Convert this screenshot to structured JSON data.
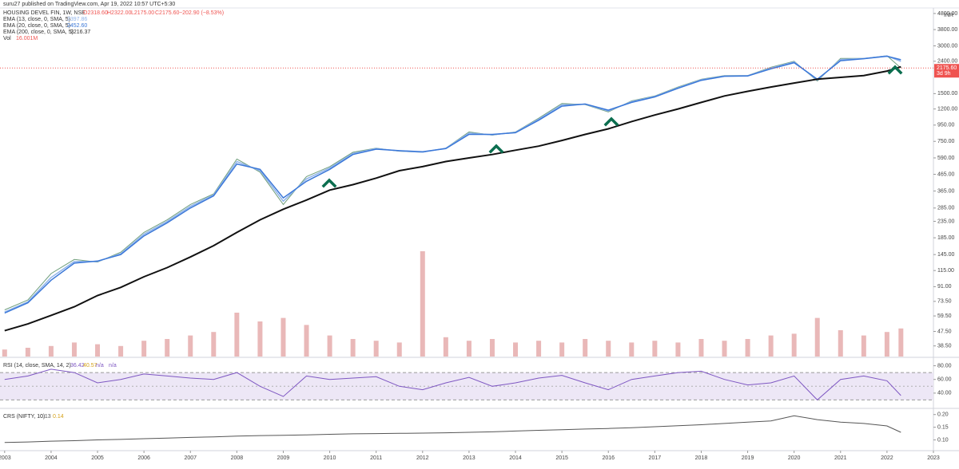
{
  "header": {
    "publisher": "suru27 published on TradingView.com, Apr 19, 2022 10:57 UTC+5:30",
    "currency": "INR"
  },
  "chart_data": [
    {
      "type": "line",
      "log_scale": true,
      "ohlc": [
        "O2318.60",
        "H2322.00",
        "L2175.00",
        "C2175.60",
        "−202.90 (−8.53%)"
      ],
      "last_price_label": "2175.60",
      "countdown": "3d 9h",
      "x": [
        2003.0,
        2003.5,
        2004.0,
        2004.5,
        2005.0,
        2005.5,
        2006.0,
        2006.5,
        2007.0,
        2007.5,
        2008.0,
        2008.5,
        2009.0,
        2009.5,
        2010.0,
        2010.5,
        2011.0,
        2011.5,
        2012.0,
        2012.5,
        2013.0,
        2013.5,
        2014.0,
        2014.5,
        2015.0,
        2015.5,
        2016.0,
        2016.5,
        2017.0,
        2017.5,
        2018.0,
        2018.5,
        2019.0,
        2019.5,
        2020.0,
        2020.5,
        2021.0,
        2021.5,
        2022.0,
        2022.3
      ],
      "xlim": [
        2002.9,
        2023
      ],
      "xticks": [
        2003,
        2004,
        2005,
        2006,
        2007,
        2008,
        2009,
        2010,
        2011,
        2012,
        2013,
        2014,
        2015,
        2016,
        2017,
        2018,
        2019,
        2020,
        2021,
        2022,
        2023
      ],
      "ylim": [
        33,
        5200
      ],
      "yticks": [
        {
          "value": 38.5,
          "label": "38.50"
        },
        {
          "value": 47.5,
          "label": "47.50"
        },
        {
          "value": 59.5,
          "label": "59.50"
        },
        {
          "value": 73.5,
          "label": "73.50"
        },
        {
          "value": 91,
          "label": "91.00"
        },
        {
          "value": 115,
          "label": "115.00"
        },
        {
          "value": 145,
          "label": "145.00"
        },
        {
          "value": 185,
          "label": "185.00"
        },
        {
          "value": 235,
          "label": "235.00"
        },
        {
          "value": 285,
          "label": "285.00"
        },
        {
          "value": 365,
          "label": "365.00"
        },
        {
          "value": 465,
          "label": "465.00"
        },
        {
          "value": 590,
          "label": "590.00"
        },
        {
          "value": 750,
          "label": "750.00"
        },
        {
          "value": 950,
          "label": "950.00"
        },
        {
          "value": 1200,
          "label": "1200.00"
        },
        {
          "value": 1500,
          "label": "1500.00"
        },
        {
          "value": 2400,
          "label": "2400.00"
        },
        {
          "value": 3000,
          "label": "3000.00"
        },
        {
          "value": 3800,
          "label": "3800.00"
        },
        {
          "value": 4800,
          "label": "4800.00"
        }
      ],
      "series": [
        {
          "name": "HOUSING DEVEL FIN, 1W, NSE",
          "color": "#6f9e7c",
          "values": [
            65,
            75,
            110,
            135,
            130,
            150,
            200,
            240,
            300,
            350,
            580,
            480,
            300,
            450,
            520,
            640,
            680,
            650,
            640,
            680,
            860,
            820,
            860,
            1050,
            1300,
            1280,
            1150,
            1350,
            1450,
            1650,
            1850,
            1950,
            1950,
            2200,
            2400,
            1800,
            2500,
            2500,
            2600,
            2175.6
          ]
        },
        {
          "name": "EMA (13, close, 0, SMA, 5)",
          "legend_value": "2397.86",
          "color": "#8fb3ea",
          "values": [
            63,
            73,
            104,
            131,
            131,
            147,
            195,
            235,
            292,
            345,
            560,
            490,
            315,
            435,
            510,
            630,
            675,
            652,
            642,
            678,
            845,
            825,
            855,
            1035,
            1275,
            1285,
            1165,
            1335,
            1440,
            1635,
            1835,
            1940,
            1945,
            2175,
            2375,
            1825,
            2460,
            2495,
            2590,
            2397.86
          ]
        },
        {
          "name": "EMA (20, close, 0, SMA, 5)",
          "legend_value": "2452.60",
          "color": "#3b78d8",
          "values": [
            62,
            72,
            100,
            128,
            132,
            145,
            190,
            230,
            285,
            340,
            540,
            500,
            330,
            420,
            500,
            620,
            670,
            655,
            645,
            675,
            830,
            830,
            850,
            1020,
            1250,
            1290,
            1180,
            1320,
            1430,
            1620,
            1820,
            1930,
            1940,
            2150,
            2350,
            1850,
            2420,
            2490,
            2580,
            2452.6
          ]
        },
        {
          "name": "EMA (200, close, 0, SMA, 5)",
          "legend_value": "2216.37",
          "color": "#111111",
          "values": [
            48,
            53,
            60,
            68,
            80,
            90,
            105,
            120,
            140,
            165,
            200,
            240,
            280,
            320,
            370,
            400,
            440,
            490,
            520,
            560,
            590,
            620,
            660,
            700,
            760,
            830,
            900,
            1000,
            1100,
            1200,
            1320,
            1450,
            1550,
            1650,
            1750,
            1850,
            1900,
            1950,
            2080,
            2216.37
          ]
        }
      ],
      "volume": {
        "name": "Vol",
        "legend_value": "16.001M",
        "color": "#e3a6a6",
        "values": [
          4,
          5,
          6,
          8,
          7,
          6,
          9,
          10,
          12,
          14,
          25,
          20,
          22,
          18,
          12,
          10,
          9,
          8,
          60,
          11,
          9,
          10,
          8,
          9,
          8,
          10,
          9,
          8,
          9,
          8,
          10,
          9,
          10,
          12,
          13,
          22,
          15,
          12,
          14,
          16.001
        ]
      }
    },
    {
      "type": "line",
      "name": "RSI (14, close, SMA, 14, 2)",
      "legend_values": [
        "36.42",
        "40.57",
        "n/a",
        "n/a"
      ],
      "color": "#7e57c2",
      "band": [
        30,
        70
      ],
      "midline": 50,
      "ylim": [
        20,
        90
      ],
      "yticks": [
        {
          "value": 40,
          "label": "40.00"
        },
        {
          "value": 60,
          "label": "60.00"
        },
        {
          "value": 80,
          "label": "80.00"
        }
      ],
      "values": [
        60,
        65,
        75,
        70,
        55,
        60,
        68,
        65,
        62,
        60,
        70,
        50,
        35,
        65,
        60,
        62,
        64,
        50,
        45,
        55,
        63,
        50,
        55,
        62,
        66,
        55,
        45,
        60,
        65,
        70,
        72,
        60,
        52,
        55,
        65,
        30,
        60,
        65,
        58,
        36.42
      ]
    },
    {
      "type": "line",
      "name": "CRS (NIFTY, 10)",
      "legend_values": [
        "0.13",
        "0.14"
      ],
      "color": "#555555",
      "ylim": [
        0.064,
        0.218
      ],
      "yticks": [
        {
          "value": 0.1,
          "label": "0.10"
        },
        {
          "value": 0.15,
          "label": "0.15"
        },
        {
          "value": 0.2,
          "label": "0.20"
        }
      ],
      "values": [
        0.09,
        0.092,
        0.095,
        0.097,
        0.1,
        0.102,
        0.105,
        0.107,
        0.11,
        0.112,
        0.115,
        0.117,
        0.118,
        0.12,
        0.122,
        0.124,
        0.125,
        0.126,
        0.127,
        0.128,
        0.13,
        0.132,
        0.135,
        0.138,
        0.14,
        0.143,
        0.145,
        0.148,
        0.152,
        0.156,
        0.16,
        0.165,
        0.17,
        0.175,
        0.195,
        0.18,
        0.17,
        0.165,
        0.155,
        0.13
      ]
    }
  ]
}
